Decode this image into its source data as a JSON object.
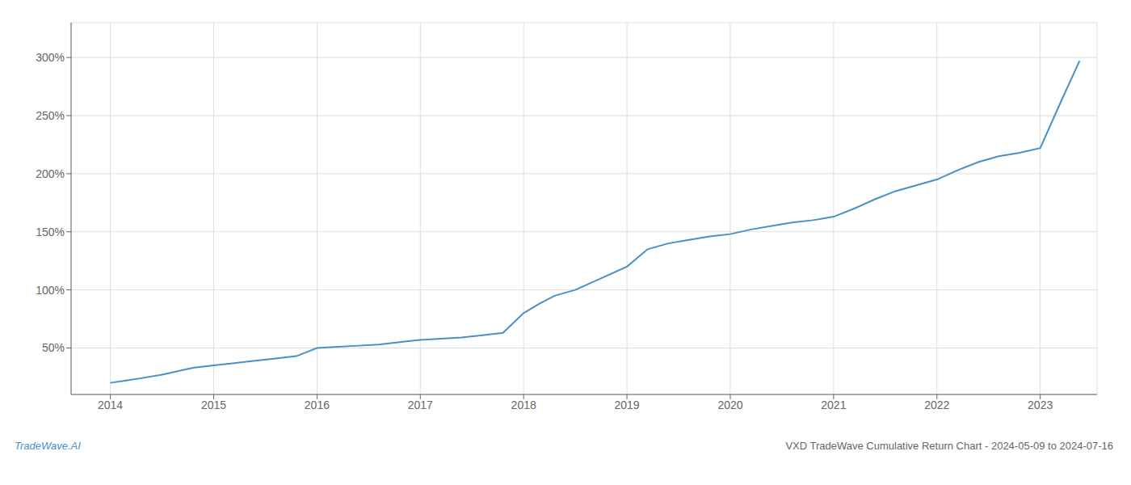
{
  "chart_data": {
    "type": "line",
    "title": "VXD TradeWave Cumulative Return Chart - 2024-05-09 to 2024-07-16",
    "annotations": [
      "TradeWave.AI"
    ],
    "color": "#4a90c4",
    "grid": true,
    "x": [
      2014.0,
      2014.15,
      2014.3,
      2014.5,
      2014.65,
      2014.8,
      2015.0,
      2015.2,
      2015.4,
      2015.6,
      2015.8,
      2016.0,
      2016.2,
      2016.4,
      2016.6,
      2016.8,
      2017.0,
      2017.2,
      2017.4,
      2017.6,
      2017.8,
      2018.0,
      2018.15,
      2018.3,
      2018.5,
      2018.7,
      2019.0,
      2019.2,
      2019.4,
      2019.6,
      2019.8,
      2020.0,
      2020.2,
      2020.4,
      2020.6,
      2020.8,
      2021.0,
      2021.2,
      2021.4,
      2021.6,
      2021.8,
      2022.0,
      2022.2,
      2022.4,
      2022.6,
      2022.8,
      2023.0,
      2023.2,
      2023.38
    ],
    "values": [
      20,
      22,
      24,
      27,
      30,
      33,
      35,
      37,
      39,
      41,
      43,
      50,
      51,
      52,
      53,
      55,
      57,
      58,
      59,
      61,
      63,
      80,
      88,
      95,
      100,
      108,
      120,
      135,
      140,
      143,
      146,
      148,
      152,
      155,
      158,
      160,
      163,
      170,
      178,
      185,
      190,
      195,
      203,
      210,
      215,
      218,
      222,
      262,
      297
    ],
    "xlim": [
      2013.62,
      2023.55
    ],
    "xticks": [
      2014,
      2015,
      2016,
      2017,
      2018,
      2019,
      2020,
      2021,
      2022,
      2023
    ],
    "ylim": [
      10,
      330
    ],
    "yticks": [
      {
        "value": 50,
        "label": "50%"
      },
      {
        "value": 100,
        "label": "100%"
      },
      {
        "value": 150,
        "label": "150%"
      },
      {
        "value": 200,
        "label": "200%"
      },
      {
        "value": 250,
        "label": "250%"
      },
      {
        "value": 300,
        "label": "300%"
      }
    ]
  }
}
